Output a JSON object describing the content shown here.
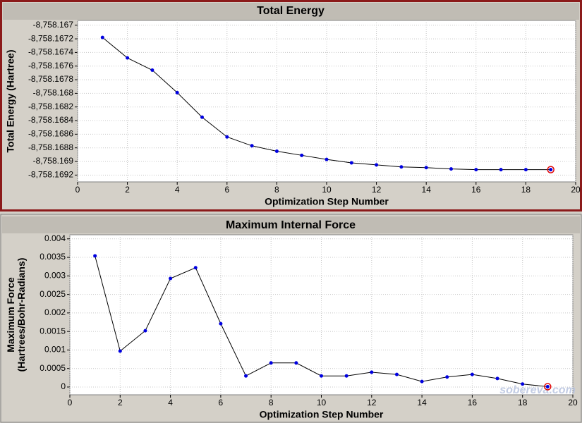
{
  "chart_data": [
    {
      "type": "line",
      "title": "Total Energy",
      "x_label": "Optimization Step Number",
      "y_label": [
        "Total Energy (Hartree)"
      ],
      "x": [
        1,
        2,
        3,
        4,
        5,
        6,
        7,
        8,
        9,
        10,
        11,
        12,
        13,
        14,
        15,
        16,
        17,
        18,
        19
      ],
      "series": [
        {
          "name": "Total Energy",
          "color": "#0000e0",
          "values": [
            -8758.16718,
            -8758.16748,
            -8758.16766,
            -8758.16799,
            -8758.16835,
            -8758.16864,
            -8758.16877,
            -8758.16885,
            -8758.16891,
            -8758.16897,
            -8758.16902,
            -8758.16905,
            -8758.16908,
            -8758.16909,
            -8758.16911,
            -8758.16912,
            -8758.16912,
            -8758.16912,
            -8758.16912
          ]
        }
      ],
      "line_color": "#000000",
      "highlight_color": "#e00000",
      "xlim": [
        0,
        20
      ],
      "xticks": [
        0,
        2,
        4,
        6,
        8,
        10,
        12,
        14,
        16,
        18,
        20
      ],
      "ylim": [
        -8758.1693,
        -8758.16693
      ],
      "yticks": [
        {
          "value": -8758.1692,
          "label": "-8,758.1692"
        },
        {
          "value": -8758.169,
          "label": "-8,758.169"
        },
        {
          "value": -8758.1688,
          "label": "-8,758.1688"
        },
        {
          "value": -8758.1686,
          "label": "-8,758.1686"
        },
        {
          "value": -8758.1684,
          "label": "-8,758.1684"
        },
        {
          "value": -8758.1682,
          "label": "-8,758.1682"
        },
        {
          "value": -8758.168,
          "label": "-8,758.168"
        },
        {
          "value": -8758.1678,
          "label": "-8,758.1678"
        },
        {
          "value": -8758.1676,
          "label": "-8,758.1676"
        },
        {
          "value": -8758.1674,
          "label": "-8,758.1674"
        },
        {
          "value": -8758.1672,
          "label": "-8,758.1672"
        },
        {
          "value": -8758.167,
          "label": "-8,758.167"
        }
      ],
      "grid": true
    },
    {
      "type": "line",
      "title": "Maximum Internal Force",
      "x_label": "Optimization Step Number",
      "y_label": [
        "Maximum Force",
        "(Hartrees/Bohr-Radians)"
      ],
      "x": [
        1,
        2,
        3,
        4,
        5,
        6,
        7,
        8,
        9,
        10,
        11,
        12,
        13,
        14,
        15,
        16,
        17,
        18,
        19
      ],
      "series": [
        {
          "name": "Maximum Internal Force",
          "color": "#0000e0",
          "values": [
            0.00354,
            0.00097,
            0.00152,
            0.00293,
            0.00322,
            0.00171,
            0.0003,
            0.00065,
            0.00065,
            0.0003,
            0.0003,
            0.0004,
            0.00034,
            0.00015,
            0.00027,
            0.00034,
            0.00023,
            8e-05,
            1e-05
          ]
        }
      ],
      "line_color": "#000000",
      "highlight_color": "#e00000",
      "xlim": [
        0,
        20
      ],
      "xticks": [
        0,
        2,
        4,
        6,
        8,
        10,
        12,
        14,
        16,
        18,
        20
      ],
      "ylim": [
        -0.00021,
        0.00411
      ],
      "yticks": [
        0,
        0.0005,
        0.001,
        0.0015,
        0.002,
        0.0025,
        0.003,
        0.0035,
        0.004
      ],
      "grid": true,
      "annotation": "sobereva.com"
    }
  ]
}
